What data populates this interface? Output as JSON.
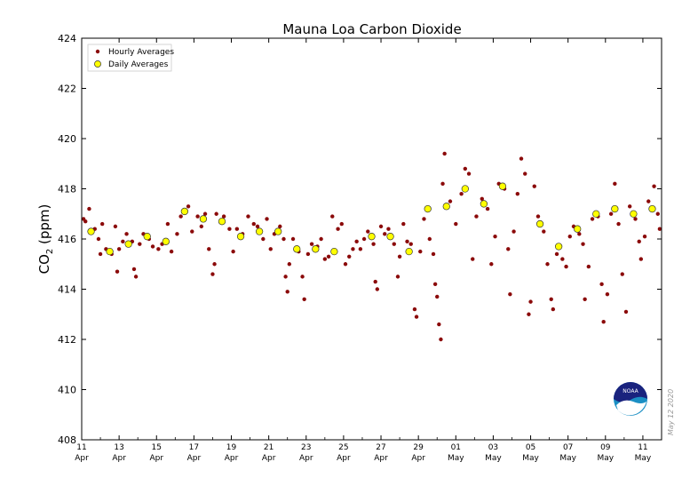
{
  "chart_data": {
    "type": "scatter",
    "title": "Mauna Loa Carbon Dioxide",
    "ylabel_main": "CO",
    "ylabel_sub": "2",
    "ylabel_unit": " (ppm)",
    "ylim": [
      408,
      424
    ],
    "yticks": [
      "408",
      "410",
      "412",
      "414",
      "416",
      "418",
      "420",
      "422",
      "424"
    ],
    "xlim": [
      0,
      31
    ],
    "xticks": [
      {
        "day": "11",
        "month": "Apr"
      },
      {
        "day": "13",
        "month": "Apr"
      },
      {
        "day": "15",
        "month": "Apr"
      },
      {
        "day": "17",
        "month": "Apr"
      },
      {
        "day": "19",
        "month": "Apr"
      },
      {
        "day": "21",
        "month": "Apr"
      },
      {
        "day": "23",
        "month": "Apr"
      },
      {
        "day": "25",
        "month": "Apr"
      },
      {
        "day": "27",
        "month": "Apr"
      },
      {
        "day": "29",
        "month": "Apr"
      },
      {
        "day": "01",
        "month": "May"
      },
      {
        "day": "03",
        "month": "May"
      },
      {
        "day": "05",
        "month": "May"
      },
      {
        "day": "07",
        "month": "May"
      },
      {
        "day": "09",
        "month": "May"
      },
      {
        "day": "11",
        "month": "May"
      }
    ],
    "legend": {
      "position": "top-left",
      "hourly": "Hourly Averages",
      "daily": "Daily Averages"
    },
    "colors": {
      "hourly": "#8b0a0a",
      "daily": "#ffff00"
    },
    "date_stamp": "May 12 2020",
    "daily_averages": [
      {
        "x": 0.5,
        "y": 416.3
      },
      {
        "x": 1.5,
        "y": 415.5
      },
      {
        "x": 2.5,
        "y": 415.8
      },
      {
        "x": 3.5,
        "y": 416.1
      },
      {
        "x": 4.5,
        "y": 415.9
      },
      {
        "x": 5.5,
        "y": 417.1
      },
      {
        "x": 6.5,
        "y": 416.8
      },
      {
        "x": 7.5,
        "y": 416.7
      },
      {
        "x": 8.5,
        "y": 416.1
      },
      {
        "x": 9.5,
        "y": 416.3
      },
      {
        "x": 10.5,
        "y": 416.3
      },
      {
        "x": 11.5,
        "y": 415.6
      },
      {
        "x": 12.5,
        "y": 415.6
      },
      {
        "x": 13.5,
        "y": 415.5
      },
      {
        "x": 15.5,
        "y": 416.1
      },
      {
        "x": 16.5,
        "y": 416.1
      },
      {
        "x": 17.5,
        "y": 415.5
      },
      {
        "x": 18.5,
        "y": 417.2
      },
      {
        "x": 19.5,
        "y": 417.3
      },
      {
        "x": 20.5,
        "y": 418.0
      },
      {
        "x": 21.5,
        "y": 417.4
      },
      {
        "x": 22.5,
        "y": 418.1
      },
      {
        "x": 24.5,
        "y": 416.6
      },
      {
        "x": 25.5,
        "y": 415.7
      },
      {
        "x": 26.5,
        "y": 416.4
      },
      {
        "x": 27.5,
        "y": 417.0
      },
      {
        "x": 28.5,
        "y": 417.2
      },
      {
        "x": 29.5,
        "y": 417.0
      },
      {
        "x": 30.5,
        "y": 417.2
      }
    ],
    "hourly_averages": [
      {
        "x": 0.1,
        "y": 416.8
      },
      {
        "x": 0.2,
        "y": 416.7
      },
      {
        "x": 0.4,
        "y": 417.2
      },
      {
        "x": 0.7,
        "y": 416.4
      },
      {
        "x": 0.9,
        "y": 416.0
      },
      {
        "x": 1.0,
        "y": 415.4
      },
      {
        "x": 1.1,
        "y": 416.6
      },
      {
        "x": 1.3,
        "y": 415.6
      },
      {
        "x": 1.6,
        "y": 415.4
      },
      {
        "x": 1.8,
        "y": 416.5
      },
      {
        "x": 1.9,
        "y": 414.7
      },
      {
        "x": 2.0,
        "y": 415.6
      },
      {
        "x": 2.2,
        "y": 415.9
      },
      {
        "x": 2.4,
        "y": 416.2
      },
      {
        "x": 2.7,
        "y": 415.9
      },
      {
        "x": 2.8,
        "y": 414.8
      },
      {
        "x": 2.9,
        "y": 414.5
      },
      {
        "x": 3.1,
        "y": 415.8
      },
      {
        "x": 3.3,
        "y": 416.2
      },
      {
        "x": 3.6,
        "y": 416.0
      },
      {
        "x": 3.8,
        "y": 415.7
      },
      {
        "x": 4.1,
        "y": 415.6
      },
      {
        "x": 4.3,
        "y": 415.8
      },
      {
        "x": 4.6,
        "y": 416.6
      },
      {
        "x": 4.8,
        "y": 415.5
      },
      {
        "x": 5.1,
        "y": 416.2
      },
      {
        "x": 5.3,
        "y": 416.9
      },
      {
        "x": 5.7,
        "y": 417.3
      },
      {
        "x": 5.9,
        "y": 416.3
      },
      {
        "x": 6.2,
        "y": 416.9
      },
      {
        "x": 6.4,
        "y": 416.5
      },
      {
        "x": 6.6,
        "y": 417.0
      },
      {
        "x": 6.8,
        "y": 415.6
      },
      {
        "x": 7.0,
        "y": 414.6
      },
      {
        "x": 7.1,
        "y": 415.0
      },
      {
        "x": 7.2,
        "y": 417.0
      },
      {
        "x": 7.6,
        "y": 416.9
      },
      {
        "x": 7.9,
        "y": 416.4
      },
      {
        "x": 8.1,
        "y": 415.5
      },
      {
        "x": 8.3,
        "y": 416.4
      },
      {
        "x": 8.6,
        "y": 416.2
      },
      {
        "x": 8.9,
        "y": 416.9
      },
      {
        "x": 9.2,
        "y": 416.6
      },
      {
        "x": 9.4,
        "y": 416.5
      },
      {
        "x": 9.7,
        "y": 416.0
      },
      {
        "x": 9.9,
        "y": 416.8
      },
      {
        "x": 10.1,
        "y": 415.6
      },
      {
        "x": 10.3,
        "y": 416.2
      },
      {
        "x": 10.6,
        "y": 416.5
      },
      {
        "x": 10.8,
        "y": 416.0
      },
      {
        "x": 10.9,
        "y": 414.5
      },
      {
        "x": 11.0,
        "y": 413.9
      },
      {
        "x": 11.1,
        "y": 415.0
      },
      {
        "x": 11.3,
        "y": 416.0
      },
      {
        "x": 11.6,
        "y": 415.5
      },
      {
        "x": 11.8,
        "y": 414.5
      },
      {
        "x": 11.9,
        "y": 413.6
      },
      {
        "x": 12.1,
        "y": 415.4
      },
      {
        "x": 12.3,
        "y": 415.8
      },
      {
        "x": 12.6,
        "y": 415.7
      },
      {
        "x": 12.8,
        "y": 416.0
      },
      {
        "x": 13.0,
        "y": 415.2
      },
      {
        "x": 13.2,
        "y": 415.3
      },
      {
        "x": 13.4,
        "y": 416.9
      },
      {
        "x": 13.7,
        "y": 416.4
      },
      {
        "x": 13.9,
        "y": 416.6
      },
      {
        "x": 14.1,
        "y": 415.0
      },
      {
        "x": 14.3,
        "y": 415.3
      },
      {
        "x": 14.5,
        "y": 415.6
      },
      {
        "x": 14.7,
        "y": 415.9
      },
      {
        "x": 14.9,
        "y": 415.6
      },
      {
        "x": 15.1,
        "y": 416.0
      },
      {
        "x": 15.3,
        "y": 416.3
      },
      {
        "x": 15.6,
        "y": 415.8
      },
      {
        "x": 15.7,
        "y": 414.3
      },
      {
        "x": 15.8,
        "y": 414.0
      },
      {
        "x": 16.0,
        "y": 416.5
      },
      {
        "x": 16.2,
        "y": 416.2
      },
      {
        "x": 16.4,
        "y": 416.4
      },
      {
        "x": 16.7,
        "y": 415.8
      },
      {
        "x": 16.9,
        "y": 414.5
      },
      {
        "x": 17.0,
        "y": 415.3
      },
      {
        "x": 17.2,
        "y": 416.6
      },
      {
        "x": 17.4,
        "y": 415.9
      },
      {
        "x": 17.6,
        "y": 415.8
      },
      {
        "x": 17.8,
        "y": 413.2
      },
      {
        "x": 17.9,
        "y": 412.9
      },
      {
        "x": 18.1,
        "y": 415.5
      },
      {
        "x": 18.3,
        "y": 416.8
      },
      {
        "x": 18.6,
        "y": 416.0
      },
      {
        "x": 18.8,
        "y": 415.4
      },
      {
        "x": 18.9,
        "y": 414.2
      },
      {
        "x": 19.0,
        "y": 413.7
      },
      {
        "x": 19.1,
        "y": 412.6
      },
      {
        "x": 19.2,
        "y": 412.0
      },
      {
        "x": 19.3,
        "y": 418.2
      },
      {
        "x": 19.4,
        "y": 419.4
      },
      {
        "x": 19.7,
        "y": 417.5
      },
      {
        "x": 20.0,
        "y": 416.6
      },
      {
        "x": 20.3,
        "y": 417.8
      },
      {
        "x": 20.5,
        "y": 418.8
      },
      {
        "x": 20.7,
        "y": 418.6
      },
      {
        "x": 20.9,
        "y": 415.2
      },
      {
        "x": 21.1,
        "y": 416.9
      },
      {
        "x": 21.4,
        "y": 417.6
      },
      {
        "x": 21.7,
        "y": 417.2
      },
      {
        "x": 21.9,
        "y": 415.0
      },
      {
        "x": 22.1,
        "y": 416.1
      },
      {
        "x": 22.3,
        "y": 418.2
      },
      {
        "x": 22.6,
        "y": 418.0
      },
      {
        "x": 22.8,
        "y": 415.6
      },
      {
        "x": 22.9,
        "y": 413.8
      },
      {
        "x": 23.1,
        "y": 416.3
      },
      {
        "x": 23.3,
        "y": 417.8
      },
      {
        "x": 23.5,
        "y": 419.2
      },
      {
        "x": 23.7,
        "y": 418.6
      },
      {
        "x": 23.9,
        "y": 413.0
      },
      {
        "x": 24.0,
        "y": 413.5
      },
      {
        "x": 24.2,
        "y": 418.1
      },
      {
        "x": 24.4,
        "y": 416.9
      },
      {
        "x": 24.7,
        "y": 416.3
      },
      {
        "x": 24.9,
        "y": 415.0
      },
      {
        "x": 25.1,
        "y": 413.6
      },
      {
        "x": 25.2,
        "y": 413.2
      },
      {
        "x": 25.4,
        "y": 415.4
      },
      {
        "x": 25.7,
        "y": 415.2
      },
      {
        "x": 25.9,
        "y": 414.9
      },
      {
        "x": 26.1,
        "y": 416.1
      },
      {
        "x": 26.3,
        "y": 416.5
      },
      {
        "x": 26.6,
        "y": 416.2
      },
      {
        "x": 26.8,
        "y": 415.8
      },
      {
        "x": 26.9,
        "y": 413.6
      },
      {
        "x": 27.1,
        "y": 414.9
      },
      {
        "x": 27.3,
        "y": 416.8
      },
      {
        "x": 27.6,
        "y": 416.9
      },
      {
        "x": 27.8,
        "y": 414.2
      },
      {
        "x": 27.9,
        "y": 412.7
      },
      {
        "x": 28.1,
        "y": 413.8
      },
      {
        "x": 28.3,
        "y": 417.0
      },
      {
        "x": 28.5,
        "y": 418.2
      },
      {
        "x": 28.7,
        "y": 416.6
      },
      {
        "x": 28.9,
        "y": 414.6
      },
      {
        "x": 29.1,
        "y": 413.1
      },
      {
        "x": 29.3,
        "y": 417.3
      },
      {
        "x": 29.6,
        "y": 416.8
      },
      {
        "x": 29.8,
        "y": 415.9
      },
      {
        "x": 29.9,
        "y": 415.2
      },
      {
        "x": 30.1,
        "y": 416.1
      },
      {
        "x": 30.3,
        "y": 417.5
      },
      {
        "x": 30.6,
        "y": 418.1
      },
      {
        "x": 30.8,
        "y": 417.0
      },
      {
        "x": 30.9,
        "y": 416.4
      }
    ]
  }
}
